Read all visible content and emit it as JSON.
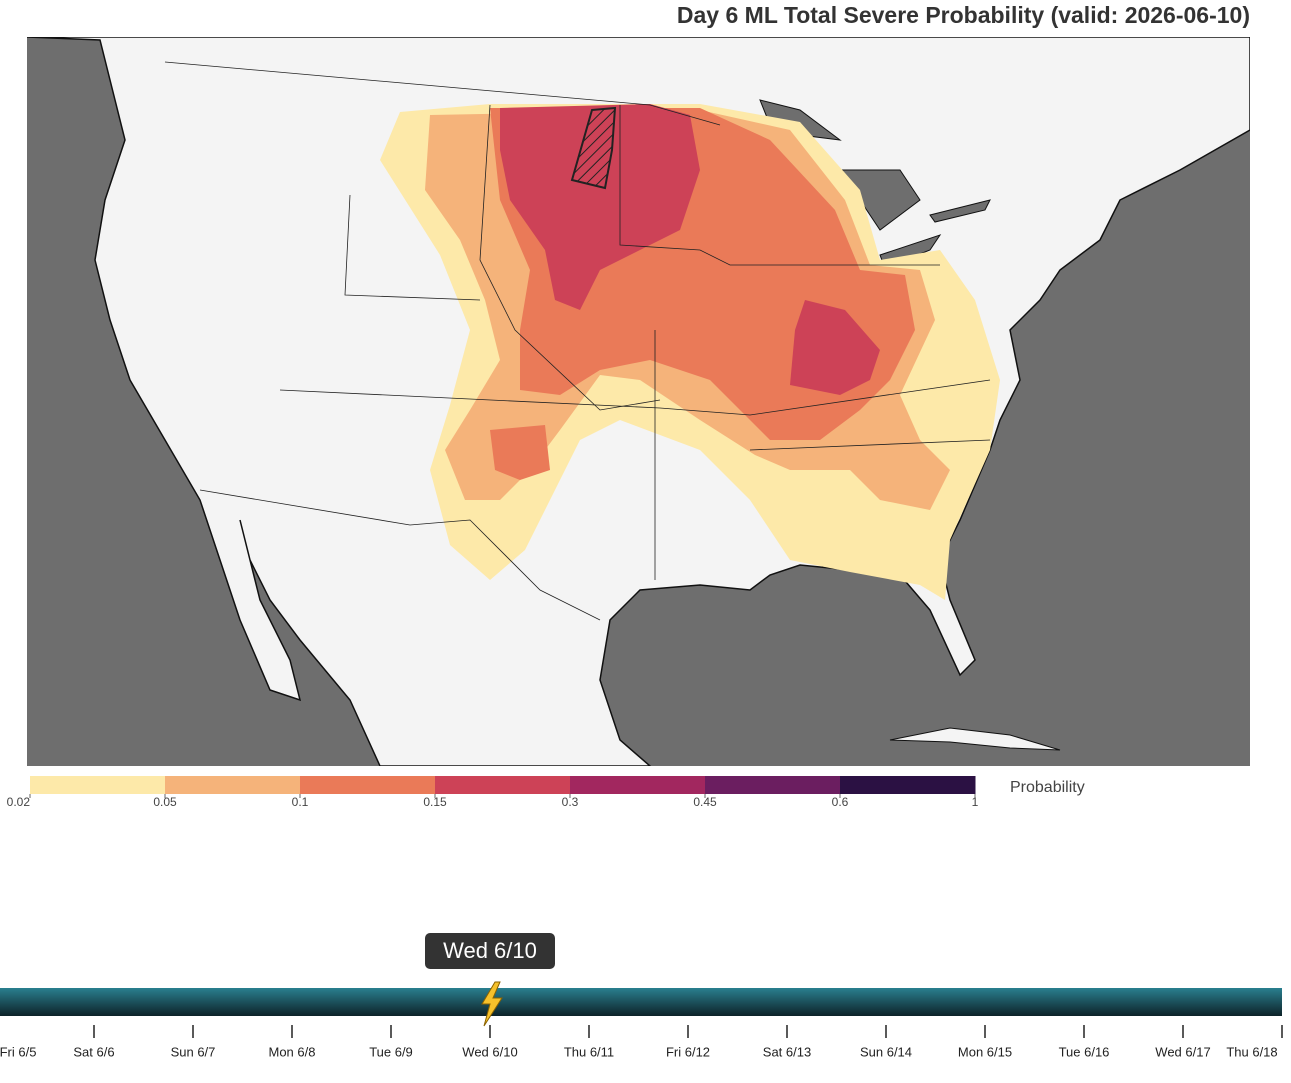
{
  "title": "Day 6 ML Total Severe Probability (valid: 2026-06-10)",
  "colorbar": {
    "label": "Probability",
    "ticks": [
      0.02,
      0.05,
      0.1,
      0.15,
      0.3,
      0.45,
      0.6,
      1
    ],
    "colors": [
      "#fde9a9",
      "#f5b37a",
      "#ea7a58",
      "#cd4257",
      "#a2275f",
      "#6b1e60",
      "#2b1143"
    ]
  },
  "timeline": {
    "tooltip": "Wed 6/10",
    "days": [
      "Fri 6/5",
      "Sat 6/6",
      "Sun 6/7",
      "Mon 6/8",
      "Tue 6/9",
      "Wed 6/10",
      "Thu 6/11",
      "Fri 6/12",
      "Sat 6/13",
      "Sun 6/14",
      "Mon 6/15",
      "Tue 6/16",
      "Wed 6/17",
      "Thu 6/18"
    ]
  }
}
